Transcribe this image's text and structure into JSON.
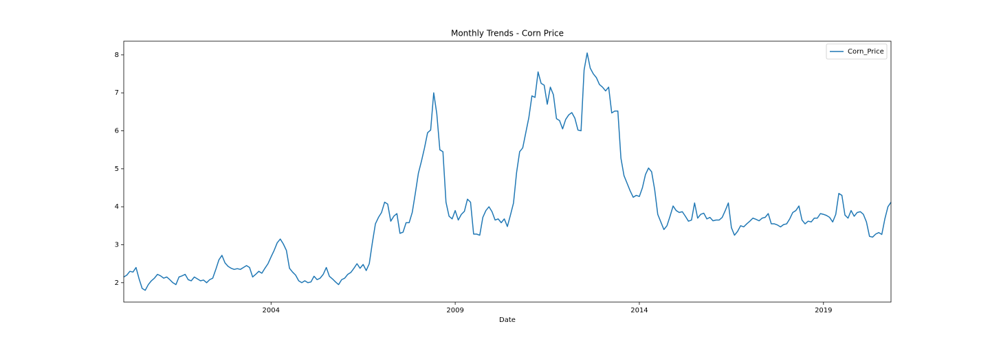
{
  "chart_data": {
    "type": "line",
    "title": "Monthly Trends - Corn Price",
    "xlabel": "Date",
    "x": [
      "2000-01",
      "2000-02",
      "2000-03",
      "2000-04",
      "2000-05",
      "2000-06",
      "2000-07",
      "2000-08",
      "2000-09",
      "2000-10",
      "2000-11",
      "2000-12",
      "2001-01",
      "2001-02",
      "2001-03",
      "2001-04",
      "2001-05",
      "2001-06",
      "2001-07",
      "2001-08",
      "2001-09",
      "2001-10",
      "2001-11",
      "2001-12",
      "2002-01",
      "2002-02",
      "2002-03",
      "2002-04",
      "2002-05",
      "2002-06",
      "2002-07",
      "2002-08",
      "2002-09",
      "2002-10",
      "2002-11",
      "2002-12",
      "2003-01",
      "2003-02",
      "2003-03",
      "2003-04",
      "2003-05",
      "2003-06",
      "2003-07",
      "2003-08",
      "2003-09",
      "2003-10",
      "2003-11",
      "2003-12",
      "2004-01",
      "2004-02",
      "2004-03",
      "2004-04",
      "2004-05",
      "2004-06",
      "2004-07",
      "2004-08",
      "2004-09",
      "2004-10",
      "2004-11",
      "2004-12",
      "2005-01",
      "2005-02",
      "2005-03",
      "2005-04",
      "2005-05",
      "2005-06",
      "2005-07",
      "2005-08",
      "2005-09",
      "2005-10",
      "2005-11",
      "2005-12",
      "2006-01",
      "2006-02",
      "2006-03",
      "2006-04",
      "2006-05",
      "2006-06",
      "2006-07",
      "2006-08",
      "2006-09",
      "2006-10",
      "2006-11",
      "2006-12",
      "2007-01",
      "2007-02",
      "2007-03",
      "2007-04",
      "2007-05",
      "2007-06",
      "2007-07",
      "2007-08",
      "2007-09",
      "2007-10",
      "2007-11",
      "2007-12",
      "2008-01",
      "2008-02",
      "2008-03",
      "2008-04",
      "2008-05",
      "2008-06",
      "2008-07",
      "2008-08",
      "2008-09",
      "2008-10",
      "2008-11",
      "2008-12",
      "2009-01",
      "2009-02",
      "2009-03",
      "2009-04",
      "2009-05",
      "2009-06",
      "2009-07",
      "2009-08",
      "2009-09",
      "2009-10",
      "2009-11",
      "2009-12",
      "2010-01",
      "2010-02",
      "2010-03",
      "2010-04",
      "2010-05",
      "2010-06",
      "2010-07",
      "2010-08",
      "2010-09",
      "2010-10",
      "2010-11",
      "2010-12",
      "2011-01",
      "2011-02",
      "2011-03",
      "2011-04",
      "2011-05",
      "2011-06",
      "2011-07",
      "2011-08",
      "2011-09",
      "2011-10",
      "2011-11",
      "2011-12",
      "2012-01",
      "2012-02",
      "2012-03",
      "2012-04",
      "2012-05",
      "2012-06",
      "2012-07",
      "2012-08",
      "2012-09",
      "2012-10",
      "2012-11",
      "2012-12",
      "2013-01",
      "2013-02",
      "2013-03",
      "2013-04",
      "2013-05",
      "2013-06",
      "2013-07",
      "2013-08",
      "2013-09",
      "2013-10",
      "2013-11",
      "2013-12",
      "2014-01",
      "2014-02",
      "2014-03",
      "2014-04",
      "2014-05",
      "2014-06",
      "2014-07",
      "2014-08",
      "2014-09",
      "2014-10",
      "2014-11",
      "2014-12",
      "2015-01",
      "2015-02",
      "2015-03",
      "2015-04",
      "2015-05",
      "2015-06",
      "2015-07",
      "2015-08",
      "2015-09",
      "2015-10",
      "2015-11",
      "2015-12",
      "2016-01",
      "2016-02",
      "2016-03",
      "2016-04",
      "2016-05",
      "2016-06",
      "2016-07",
      "2016-08",
      "2016-09",
      "2016-10",
      "2016-11",
      "2016-12",
      "2017-01",
      "2017-02",
      "2017-03",
      "2017-04",
      "2017-05",
      "2017-06",
      "2017-07",
      "2017-08",
      "2017-09",
      "2017-10",
      "2017-11",
      "2017-12",
      "2018-01",
      "2018-02",
      "2018-03",
      "2018-04",
      "2018-05",
      "2018-06",
      "2018-07",
      "2018-08",
      "2018-09",
      "2018-10",
      "2018-11",
      "2018-12",
      "2019-01",
      "2019-02",
      "2019-03",
      "2019-04",
      "2019-05",
      "2019-06",
      "2019-07",
      "2019-08",
      "2019-09",
      "2019-10",
      "2019-11",
      "2019-12",
      "2020-01",
      "2020-02",
      "2020-03",
      "2020-04",
      "2020-05",
      "2020-06",
      "2020-07",
      "2020-08",
      "2020-09",
      "2020-10",
      "2020-11"
    ],
    "series": [
      {
        "name": "Corn_Price",
        "color": "#1f77b4",
        "values": [
          2.15,
          2.2,
          2.3,
          2.28,
          2.4,
          2.1,
          1.85,
          1.8,
          1.95,
          2.05,
          2.12,
          2.22,
          2.18,
          2.12,
          2.15,
          2.08,
          2.0,
          1.95,
          2.15,
          2.18,
          2.22,
          2.08,
          2.05,
          2.15,
          2.1,
          2.05,
          2.07,
          2.0,
          2.08,
          2.12,
          2.35,
          2.6,
          2.72,
          2.52,
          2.43,
          2.38,
          2.35,
          2.37,
          2.35,
          2.4,
          2.45,
          2.4,
          2.15,
          2.22,
          2.3,
          2.25,
          2.38,
          2.5,
          2.68,
          2.85,
          3.05,
          3.15,
          3.02,
          2.85,
          2.38,
          2.28,
          2.2,
          2.05,
          2.0,
          2.05,
          2.0,
          2.02,
          2.17,
          2.08,
          2.12,
          2.22,
          2.4,
          2.17,
          2.1,
          2.02,
          1.95,
          2.08,
          2.12,
          2.22,
          2.27,
          2.38,
          2.5,
          2.38,
          2.48,
          2.32,
          2.5,
          3.05,
          3.55,
          3.72,
          3.85,
          4.12,
          4.07,
          3.62,
          3.75,
          3.82,
          3.3,
          3.33,
          3.58,
          3.58,
          3.85,
          4.35,
          4.88,
          5.2,
          5.55,
          5.95,
          6.02,
          7.0,
          6.45,
          5.5,
          5.45,
          4.12,
          3.75,
          3.68,
          3.9,
          3.65,
          3.8,
          3.88,
          4.2,
          4.12,
          3.28,
          3.28,
          3.25,
          3.72,
          3.9,
          4.0,
          3.87,
          3.65,
          3.68,
          3.58,
          3.68,
          3.48,
          3.78,
          4.1,
          4.9,
          5.45,
          5.55,
          5.95,
          6.35,
          6.92,
          6.88,
          7.55,
          7.25,
          7.2,
          6.7,
          7.15,
          6.95,
          6.32,
          6.27,
          6.05,
          6.3,
          6.42,
          6.48,
          6.33,
          6.02,
          6.0,
          7.6,
          8.05,
          7.65,
          7.5,
          7.4,
          7.22,
          7.15,
          7.05,
          7.15,
          6.47,
          6.52,
          6.52,
          5.28,
          4.82,
          4.62,
          4.42,
          4.25,
          4.3,
          4.27,
          4.5,
          4.85,
          5.02,
          4.92,
          4.45,
          3.8,
          3.6,
          3.4,
          3.5,
          3.75,
          4.02,
          3.9,
          3.85,
          3.87,
          3.75,
          3.62,
          3.65,
          4.1,
          3.7,
          3.8,
          3.83,
          3.68,
          3.72,
          3.63,
          3.65,
          3.65,
          3.72,
          3.9,
          4.1,
          3.45,
          3.25,
          3.35,
          3.5,
          3.47,
          3.55,
          3.62,
          3.7,
          3.67,
          3.63,
          3.7,
          3.72,
          3.82,
          3.55,
          3.55,
          3.52,
          3.47,
          3.53,
          3.55,
          3.68,
          3.85,
          3.9,
          4.02,
          3.65,
          3.55,
          3.62,
          3.6,
          3.7,
          3.7,
          3.82,
          3.8,
          3.77,
          3.72,
          3.6,
          3.8,
          4.35,
          4.3,
          3.78,
          3.7,
          3.9,
          3.75,
          3.85,
          3.87,
          3.8,
          3.6,
          3.22,
          3.2,
          3.28,
          3.32,
          3.27,
          3.68,
          4.0,
          4.12
        ]
      }
    ],
    "xlim": [
      "2000-01",
      "2020-11"
    ],
    "xticks": [
      {
        "value": "2004-01",
        "label": "2004"
      },
      {
        "value": "2009-01",
        "label": "2009"
      },
      {
        "value": "2014-01",
        "label": "2014"
      },
      {
        "value": "2019-01",
        "label": "2019"
      }
    ],
    "ylim": [
      1.49,
      8.36
    ],
    "yticks": [
      2,
      3,
      4,
      5,
      6,
      7,
      8
    ],
    "legend": "upper right",
    "grid": false
  }
}
